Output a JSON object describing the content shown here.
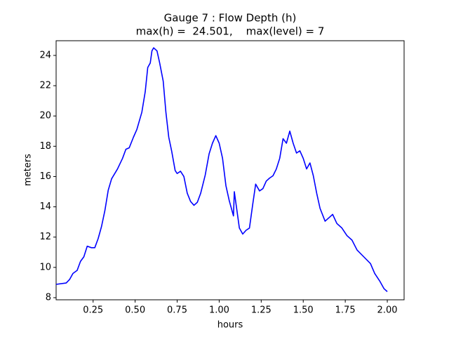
{
  "chart_data": {
    "type": "line",
    "title": "Gauge 7 : Flow Depth (h)",
    "subtitle": "max(h) =  24.501,    max(level) = 7",
    "x_label": "hours",
    "y_label": "meters",
    "color": "#0000ff",
    "x": [
      0.03,
      0.09,
      0.11,
      0.13,
      0.155,
      0.175,
      0.195,
      0.215,
      0.24,
      0.26,
      0.28,
      0.3,
      0.32,
      0.34,
      0.36,
      0.395,
      0.425,
      0.445,
      0.465,
      0.49,
      0.51,
      0.54,
      0.56,
      0.575,
      0.59,
      0.6,
      0.61,
      0.63,
      0.646,
      0.667,
      0.683,
      0.7,
      0.717,
      0.738,
      0.75,
      0.77,
      0.79,
      0.81,
      0.83,
      0.85,
      0.87,
      0.89,
      0.917,
      0.94,
      0.96,
      0.98,
      1.0,
      1.02,
      1.04,
      1.06,
      1.085,
      1.09,
      1.1,
      1.12,
      1.14,
      1.16,
      1.18,
      1.2,
      1.217,
      1.24,
      1.26,
      1.28,
      1.3,
      1.32,
      1.34,
      1.36,
      1.38,
      1.4,
      1.42,
      1.44,
      1.46,
      1.48,
      1.5,
      1.52,
      1.54,
      1.56,
      1.58,
      1.6,
      1.63,
      1.655,
      1.675,
      1.7,
      1.73,
      1.76,
      1.79,
      1.82,
      1.86,
      1.9,
      1.925,
      1.955,
      1.98,
      2.0
    ],
    "values": [
      8.88,
      8.97,
      9.2,
      9.6,
      9.8,
      10.4,
      10.7,
      11.4,
      11.3,
      11.3,
      11.9,
      12.7,
      13.75,
      15.1,
      15.85,
      16.5,
      17.2,
      17.8,
      17.9,
      18.6,
      19.1,
      20.25,
      21.6,
      23.2,
      23.5,
      24.3,
      24.5,
      24.3,
      23.5,
      22.3,
      20.25,
      18.6,
      17.7,
      16.4,
      16.2,
      16.35,
      16.0,
      14.9,
      14.35,
      14.1,
      14.3,
      14.9,
      16.1,
      17.5,
      18.2,
      18.7,
      18.2,
      17.2,
      15.4,
      14.4,
      13.4,
      15.0,
      14.2,
      12.6,
      12.2,
      12.45,
      12.6,
      14.2,
      15.5,
      15.05,
      15.2,
      15.7,
      15.9,
      16.05,
      16.5,
      17.2,
      18.5,
      18.2,
      19.0,
      18.2,
      17.55,
      17.7,
      17.2,
      16.5,
      16.9,
      16.05,
      14.9,
      13.9,
      13.05,
      13.3,
      13.5,
      12.9,
      12.6,
      12.1,
      11.8,
      11.15,
      10.7,
      10.25,
      9.6,
      9.1,
      8.6,
      8.4
    ],
    "xlim": [
      0.03,
      2.1
    ],
    "ylim": [
      7.86,
      24.97
    ],
    "xticks": [
      0.25,
      {
        "value": 0.5,
        "label": "0.50"
      },
      0.75,
      {
        "value": 1,
        "label": "1.00"
      },
      1.25,
      {
        "value": 1.5,
        "label": "1.50"
      },
      1.75,
      {
        "value": 2,
        "label": "2.00"
      }
    ],
    "yticks": [
      8,
      10,
      12,
      14,
      16,
      18,
      20,
      22,
      24
    ]
  }
}
